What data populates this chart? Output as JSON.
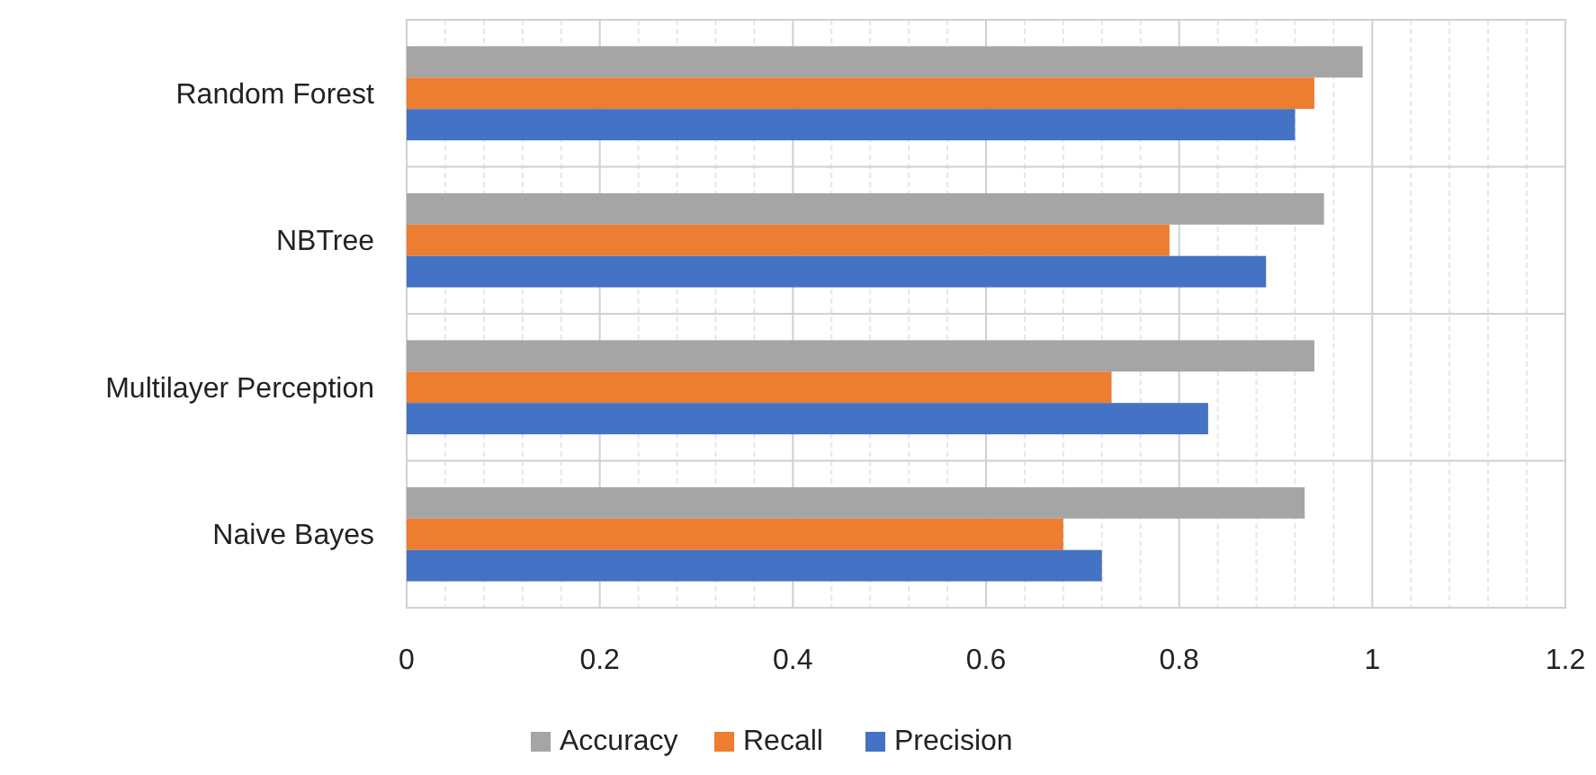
{
  "chart_data": {
    "type": "bar",
    "orientation": "horizontal",
    "categories": [
      "Random Forest",
      "NBTree",
      "Multilayer Perception",
      "Naive Bayes"
    ],
    "series": [
      {
        "name": "Accuracy",
        "color": "#a5a5a5",
        "values": [
          0.99,
          0.95,
          0.94,
          0.93
        ]
      },
      {
        "name": "Recall",
        "color": "#ed7d31",
        "values": [
          0.94,
          0.79,
          0.73,
          0.68
        ]
      },
      {
        "name": "Precision",
        "color": "#4472c4",
        "values": [
          0.92,
          0.89,
          0.83,
          0.72
        ]
      }
    ],
    "xlim": [
      0,
      1.2
    ],
    "xticks": [
      0,
      {
        "value": 0.04,
        "label": null
      },
      {
        "value": 0.08,
        "label": null
      },
      {
        "value": 0.12,
        "label": null
      },
      {
        "value": 0.16,
        "label": null
      },
      0.2,
      {
        "value": 0.24,
        "label": null
      },
      {
        "value": 0.28,
        "label": null
      },
      {
        "value": 0.32,
        "label": null
      },
      {
        "value": 0.36,
        "label": null
      },
      0.4,
      {
        "value": 0.44,
        "label": null
      },
      {
        "value": 0.48,
        "label": null
      },
      {
        "value": 0.52,
        "label": null
      },
      {
        "value": 0.56,
        "label": null
      },
      0.6,
      {
        "value": 0.64,
        "label": null
      },
      {
        "value": 0.68,
        "label": null
      },
      {
        "value": 0.72,
        "label": null
      },
      {
        "value": 0.76,
        "label": null
      },
      0.8,
      {
        "value": 0.84,
        "label": null
      },
      {
        "value": 0.88,
        "label": null
      },
      {
        "value": 0.92,
        "label": null
      },
      {
        "value": 0.96,
        "label": null
      },
      1,
      {
        "value": 1.04,
        "label": null
      },
      {
        "value": 1.08,
        "label": null
      },
      {
        "value": 1.12,
        "label": null
      },
      {
        "value": 1.16,
        "label": null
      },
      1.2
    ],
    "grid": true,
    "legend": "bottom"
  }
}
